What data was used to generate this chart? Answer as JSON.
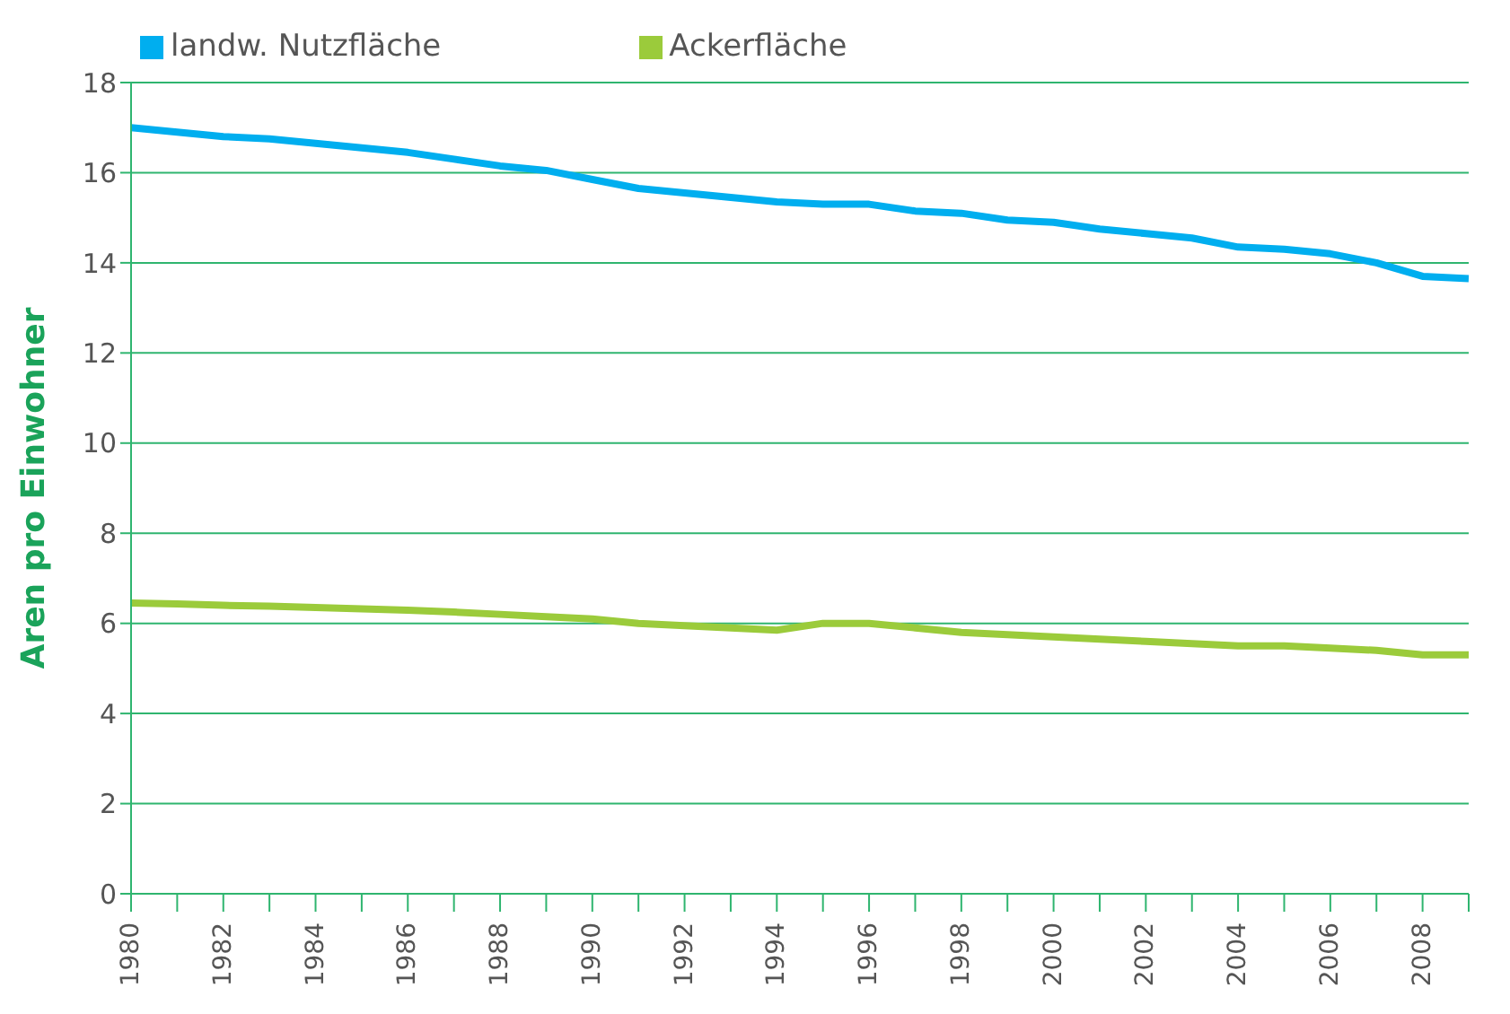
{
  "chart_data": {
    "type": "line",
    "ylabel": "Aren pro Einwohner",
    "categories": [
      "1980",
      null,
      "1982",
      null,
      "1984",
      null,
      "1986",
      null,
      "1988",
      null,
      "1990",
      null,
      "1992",
      null,
      "1994",
      null,
      "1996",
      null,
      "1998",
      null,
      "2000",
      null,
      "2002",
      null,
      "2004",
      null,
      "2006",
      null,
      "2008",
      null
    ],
    "series": [
      {
        "name": "landw. Nutzfläche",
        "color": "#00aeef",
        "values": [
          17.0,
          16.9,
          16.8,
          16.75,
          16.65,
          16.55,
          16.45,
          16.3,
          16.15,
          16.05,
          15.85,
          15.65,
          15.55,
          15.45,
          15.35,
          15.3,
          15.3,
          15.15,
          15.1,
          14.95,
          14.9,
          14.75,
          14.65,
          14.55,
          14.35,
          14.3,
          14.2,
          14.0,
          13.7,
          13.65
        ]
      },
      {
        "name": "Ackerfläche",
        "color": "#9bcb3b",
        "values": [
          6.45,
          6.43,
          6.4,
          6.38,
          6.35,
          6.32,
          6.29,
          6.25,
          6.2,
          6.15,
          6.1,
          6.0,
          5.95,
          5.9,
          5.85,
          6.0,
          6.0,
          5.9,
          5.8,
          5.75,
          5.7,
          5.65,
          5.6,
          5.55,
          5.5,
          5.5,
          5.45,
          5.4,
          5.3,
          5.3
        ]
      }
    ],
    "ylim": [
      0,
      18
    ],
    "yticks": [
      0,
      2,
      4,
      6,
      8,
      10,
      12,
      14,
      16,
      18
    ],
    "grid": "y",
    "legend": "top left",
    "marker": "none",
    "line_style": "solid"
  }
}
